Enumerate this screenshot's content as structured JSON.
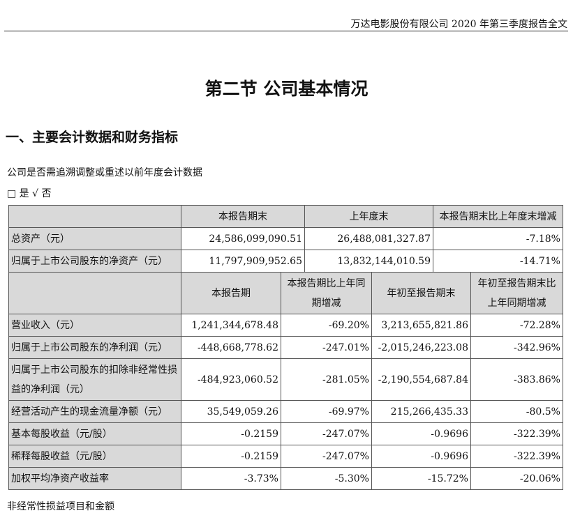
{
  "header": "万达电影股份有限公司 2020 年第三季度报告全文",
  "title": "第二节  公司基本情况",
  "section_heading": "一、主要会计数据和财务指标",
  "question": "公司是否需追溯调整或重述以前年度会计数据",
  "options": "□ 是 √ 否",
  "table1": {
    "headers": [
      "",
      "本报告期末",
      "上年度末",
      "本报告期末比上年度末增减"
    ],
    "rows": [
      [
        "总资产（元）",
        "24,586,099,090.51",
        "26,488,081,327.87",
        "-7.18%"
      ],
      [
        "归属于上市公司股东的净资产（元）",
        "11,797,909,952.65",
        "13,832,144,010.59",
        "-14.71%"
      ]
    ]
  },
  "table2": {
    "headers": [
      "",
      "本报告期",
      "本报告期比上年同期增减",
      "年初至报告期末",
      "年初至报告期末比上年同期增减"
    ],
    "rows": [
      [
        "营业收入（元）",
        "1,241,344,678.48",
        "-69.20%",
        "3,213,655,821.86",
        "-72.28%"
      ],
      [
        "归属于上市公司股东的净利润（元）",
        "-448,668,778.62",
        "-247.01%",
        "-2,015,246,223.08",
        "-342.96%"
      ],
      [
        "归属于上市公司股东的扣除非经常性损益的净利润（元）",
        "-484,923,060.52",
        "-281.05%",
        "-2,190,554,687.84",
        "-383.86%"
      ],
      [
        "经营活动产生的现金流量净额（元）",
        "35,549,059.26",
        "-69.97%",
        "215,266,435.33",
        "-80.5%"
      ],
      [
        "基本每股收益（元/股）",
        "-0.2159",
        "-247.07%",
        "-0.9696",
        "-322.39%"
      ],
      [
        "稀释每股收益（元/股）",
        "-0.2159",
        "-247.07%",
        "-0.9696",
        "-322.39%"
      ],
      [
        "加权平均净资产收益率",
        "-3.73%",
        "-5.30%",
        "-15.72%",
        "-20.06%"
      ]
    ]
  },
  "footer_text": "非经常性损益项目和金额"
}
